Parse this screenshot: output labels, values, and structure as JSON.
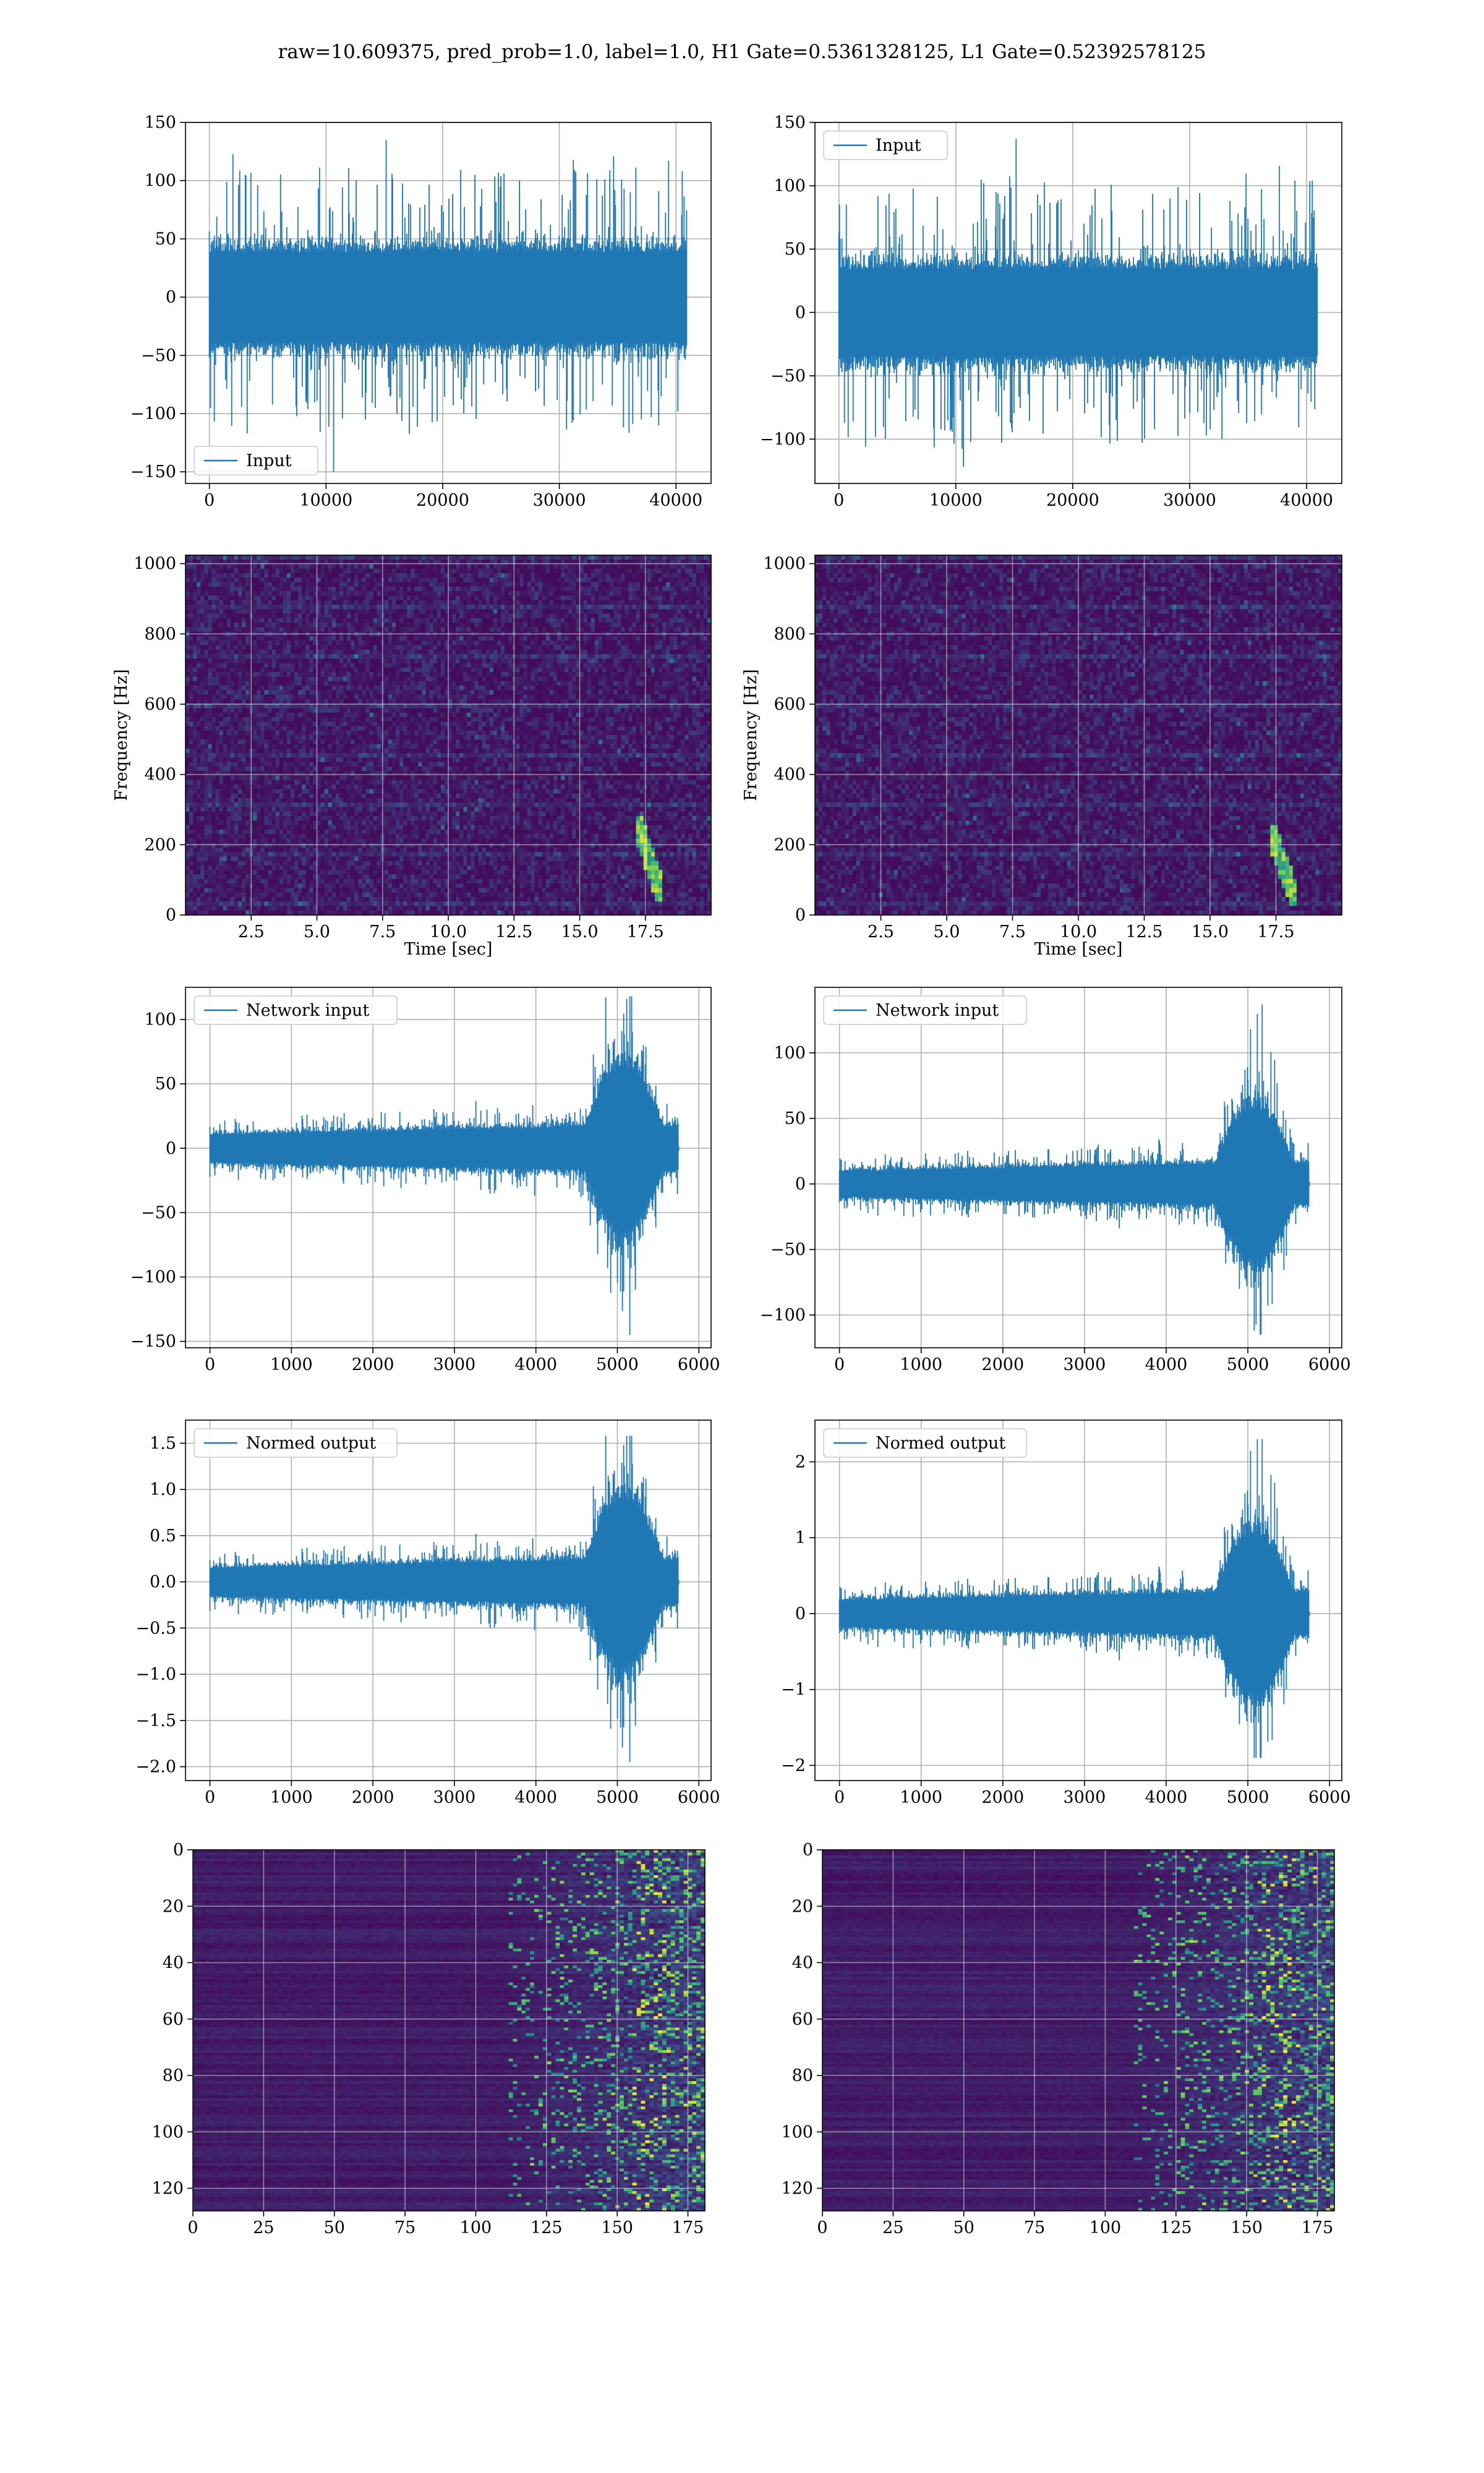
{
  "figure": {
    "suptitle": "raw=10.609375, pred_prob=1.0, label=1.0, H1 Gate=0.5361328125, L1 Gate=0.52392578125",
    "colors": {
      "line": "#1f77b4",
      "grid": "#b0b0b0",
      "viridis_dark": "#440154",
      "viridis_mid": "#21918c",
      "viridis_bright": "#fde725"
    }
  },
  "chart_data": [
    {
      "id": "input-h1",
      "type": "line",
      "series": [
        {
          "name": "Input"
        }
      ],
      "legend": "lower-left",
      "grid": true,
      "xlim": [
        -2048,
        43008
      ],
      "ylim": [
        -160,
        150
      ],
      "xticks": [
        0,
        10000,
        20000,
        30000,
        40000
      ],
      "yticks": [
        -150,
        -100,
        -50,
        0,
        50,
        100,
        150
      ],
      "xticklabels": [
        "0",
        "10000",
        "20000",
        "30000",
        "40000"
      ],
      "yticklabels": [
        "−150",
        "−100",
        "−50",
        "0",
        "50",
        "100",
        "150"
      ],
      "signal": {
        "kind": "noise",
        "n": 40960,
        "band": 45,
        "peaks": [
          -150,
          135
        ],
        "seed": 11
      }
    },
    {
      "id": "input-l1",
      "type": "line",
      "series": [
        {
          "name": "Input"
        }
      ],
      "legend": "upper-left",
      "grid": true,
      "xlim": [
        -2048,
        43008
      ],
      "ylim": [
        -135,
        150
      ],
      "xticks": [
        0,
        10000,
        20000,
        30000,
        40000
      ],
      "yticks": [
        -100,
        -50,
        0,
        50,
        100,
        150
      ],
      "xticklabels": [
        "0",
        "10000",
        "20000",
        "30000",
        "40000"
      ],
      "yticklabels": [
        "−100",
        "−50",
        "0",
        "50",
        "100",
        "150"
      ],
      "signal": {
        "kind": "noise",
        "n": 40960,
        "band": 40,
        "peaks": [
          -122,
          137
        ],
        "seed": 23
      }
    },
    {
      "id": "spec-h1",
      "type": "heatmap",
      "grid": true,
      "xlabel": "Time [sec]",
      "ylabel": "Frequency [Hz]",
      "xlim": [
        0,
        20
      ],
      "ylim": [
        0,
        1024
      ],
      "xticks": [
        2.5,
        5,
        7.5,
        10,
        12.5,
        15,
        17.5
      ],
      "yticks": [
        0,
        200,
        400,
        600,
        800,
        1000
      ],
      "xticklabels": [
        "2.5",
        "5.0",
        "7.5",
        "10.0",
        "12.5",
        "15.0",
        "17.5"
      ],
      "yticklabels": [
        "0",
        "200",
        "400",
        "600",
        "800",
        "1000"
      ],
      "feature": {
        "kind": "chirp",
        "t_start": 17.2,
        "t_end": 18.2,
        "f_low": 40,
        "f_high": 280
      },
      "seed": 5
    },
    {
      "id": "spec-l1",
      "type": "heatmap",
      "grid": true,
      "xlabel": "Time [sec]",
      "ylabel": "Frequency [Hz]",
      "xlim": [
        0,
        20
      ],
      "ylim": [
        0,
        1024
      ],
      "xticks": [
        2.5,
        5,
        7.5,
        10,
        12.5,
        15,
        17.5
      ],
      "yticks": [
        0,
        200,
        400,
        600,
        800,
        1000
      ],
      "xticklabels": [
        "2.5",
        "5.0",
        "7.5",
        "10.0",
        "12.5",
        "15.0",
        "17.5"
      ],
      "yticklabels": [
        "0",
        "200",
        "400",
        "600",
        "800",
        "1000"
      ],
      "feature": {
        "kind": "chirp",
        "t_start": 17.3,
        "t_end": 18.3,
        "f_low": 30,
        "f_high": 260
      },
      "seed": 9
    },
    {
      "id": "netin-h1",
      "type": "line",
      "series": [
        {
          "name": "Network input"
        }
      ],
      "legend": "upper-left",
      "grid": true,
      "xlim": [
        -300,
        6150
      ],
      "ylim": [
        -155,
        125
      ],
      "xticks": [
        0,
        1000,
        2000,
        3000,
        4000,
        5000,
        6000
      ],
      "yticks": [
        -150,
        -100,
        -50,
        0,
        50,
        100
      ],
      "xticklabels": [
        "0",
        "1000",
        "2000",
        "3000",
        "4000",
        "5000",
        "6000"
      ],
      "yticklabels": [
        "−150",
        "−100",
        "−50",
        "0",
        "50",
        "100"
      ],
      "signal": {
        "kind": "burst",
        "n": 5760,
        "base": 12,
        "burst_start": 4600,
        "burst_end": 5750,
        "peaks": [
          -145,
          118
        ],
        "seed": 31
      }
    },
    {
      "id": "netin-l1",
      "type": "line",
      "series": [
        {
          "name": "Network input"
        }
      ],
      "legend": "upper-left",
      "grid": true,
      "xlim": [
        -300,
        6150
      ],
      "ylim": [
        -125,
        150
      ],
      "xticks": [
        0,
        1000,
        2000,
        3000,
        4000,
        5000,
        6000
      ],
      "yticks": [
        -100,
        -50,
        0,
        50,
        100
      ],
      "xticklabels": [
        "0",
        "1000",
        "2000",
        "3000",
        "4000",
        "5000",
        "6000"
      ],
      "yticklabels": [
        "−100",
        "−50",
        "0",
        "50",
        "100"
      ],
      "signal": {
        "kind": "burst",
        "n": 5760,
        "base": 11,
        "burst_start": 4600,
        "burst_end": 5750,
        "peaks": [
          -115,
          137
        ],
        "seed": 47
      }
    },
    {
      "id": "norm-h1",
      "type": "line",
      "series": [
        {
          "name": "Normed output"
        }
      ],
      "legend": "upper-left",
      "grid": true,
      "xlim": [
        -300,
        6150
      ],
      "ylim": [
        -2.15,
        1.75
      ],
      "xticks": [
        0,
        1000,
        2000,
        3000,
        4000,
        5000,
        6000
      ],
      "yticks": [
        -2.0,
        -1.5,
        -1.0,
        -0.5,
        0.0,
        0.5,
        1.0,
        1.5
      ],
      "xticklabels": [
        "0",
        "1000",
        "2000",
        "3000",
        "4000",
        "5000",
        "6000"
      ],
      "yticklabels": [
        "−2.0",
        "−1.5",
        "−1.0",
        "−0.5",
        "0.0",
        "0.5",
        "1.0",
        "1.5"
      ],
      "signal": {
        "kind": "burst",
        "n": 5760,
        "base": 0.17,
        "burst_start": 4600,
        "burst_end": 5750,
        "peaks": [
          -1.95,
          1.58
        ],
        "seed": 31
      }
    },
    {
      "id": "norm-l1",
      "type": "line",
      "series": [
        {
          "name": "Normed output"
        }
      ],
      "legend": "upper-left",
      "grid": true,
      "xlim": [
        -300,
        6150
      ],
      "ylim": [
        -2.2,
        2.55
      ],
      "xticks": [
        0,
        1000,
        2000,
        3000,
        4000,
        5000,
        6000
      ],
      "yticks": [
        -2,
        -1,
        0,
        1,
        2
      ],
      "xticklabels": [
        "0",
        "1000",
        "2000",
        "3000",
        "4000",
        "5000",
        "6000"
      ],
      "yticklabels": [
        "−2",
        "−1",
        "0",
        "1",
        "2"
      ],
      "signal": {
        "kind": "burst",
        "n": 5760,
        "base": 0.2,
        "burst_start": 4600,
        "burst_end": 5750,
        "peaks": [
          -1.9,
          2.3
        ],
        "seed": 47
      }
    },
    {
      "id": "feat-h1",
      "type": "heatmap",
      "grid": true,
      "xlim": [
        0,
        181
      ],
      "ylim": [
        128,
        0
      ],
      "xticks": [
        0,
        25,
        50,
        75,
        100,
        125,
        150,
        175
      ],
      "yticks": [
        0,
        20,
        40,
        60,
        80,
        100,
        120
      ],
      "xticklabels": [
        "0",
        "25",
        "50",
        "75",
        "100",
        "125",
        "150",
        "175"
      ],
      "yticklabels": [
        "0",
        "20",
        "40",
        "60",
        "80",
        "100",
        "120"
      ],
      "feature": {
        "kind": "rows",
        "rows": 128,
        "cols": 181,
        "onset": 122,
        "seed": 3
      }
    },
    {
      "id": "feat-l1",
      "type": "heatmap",
      "grid": true,
      "xlim": [
        0,
        181
      ],
      "ylim": [
        128,
        0
      ],
      "xticks": [
        0,
        25,
        50,
        75,
        100,
        125,
        150,
        175
      ],
      "yticks": [
        0,
        20,
        40,
        60,
        80,
        100,
        120
      ],
      "xticklabels": [
        "0",
        "25",
        "50",
        "75",
        "100",
        "125",
        "150",
        "175"
      ],
      "yticklabels": [
        "0",
        "20",
        "40",
        "60",
        "80",
        "100",
        "120"
      ],
      "feature": {
        "kind": "rows",
        "rows": 128,
        "cols": 181,
        "onset": 120,
        "seed": 13
      }
    }
  ]
}
